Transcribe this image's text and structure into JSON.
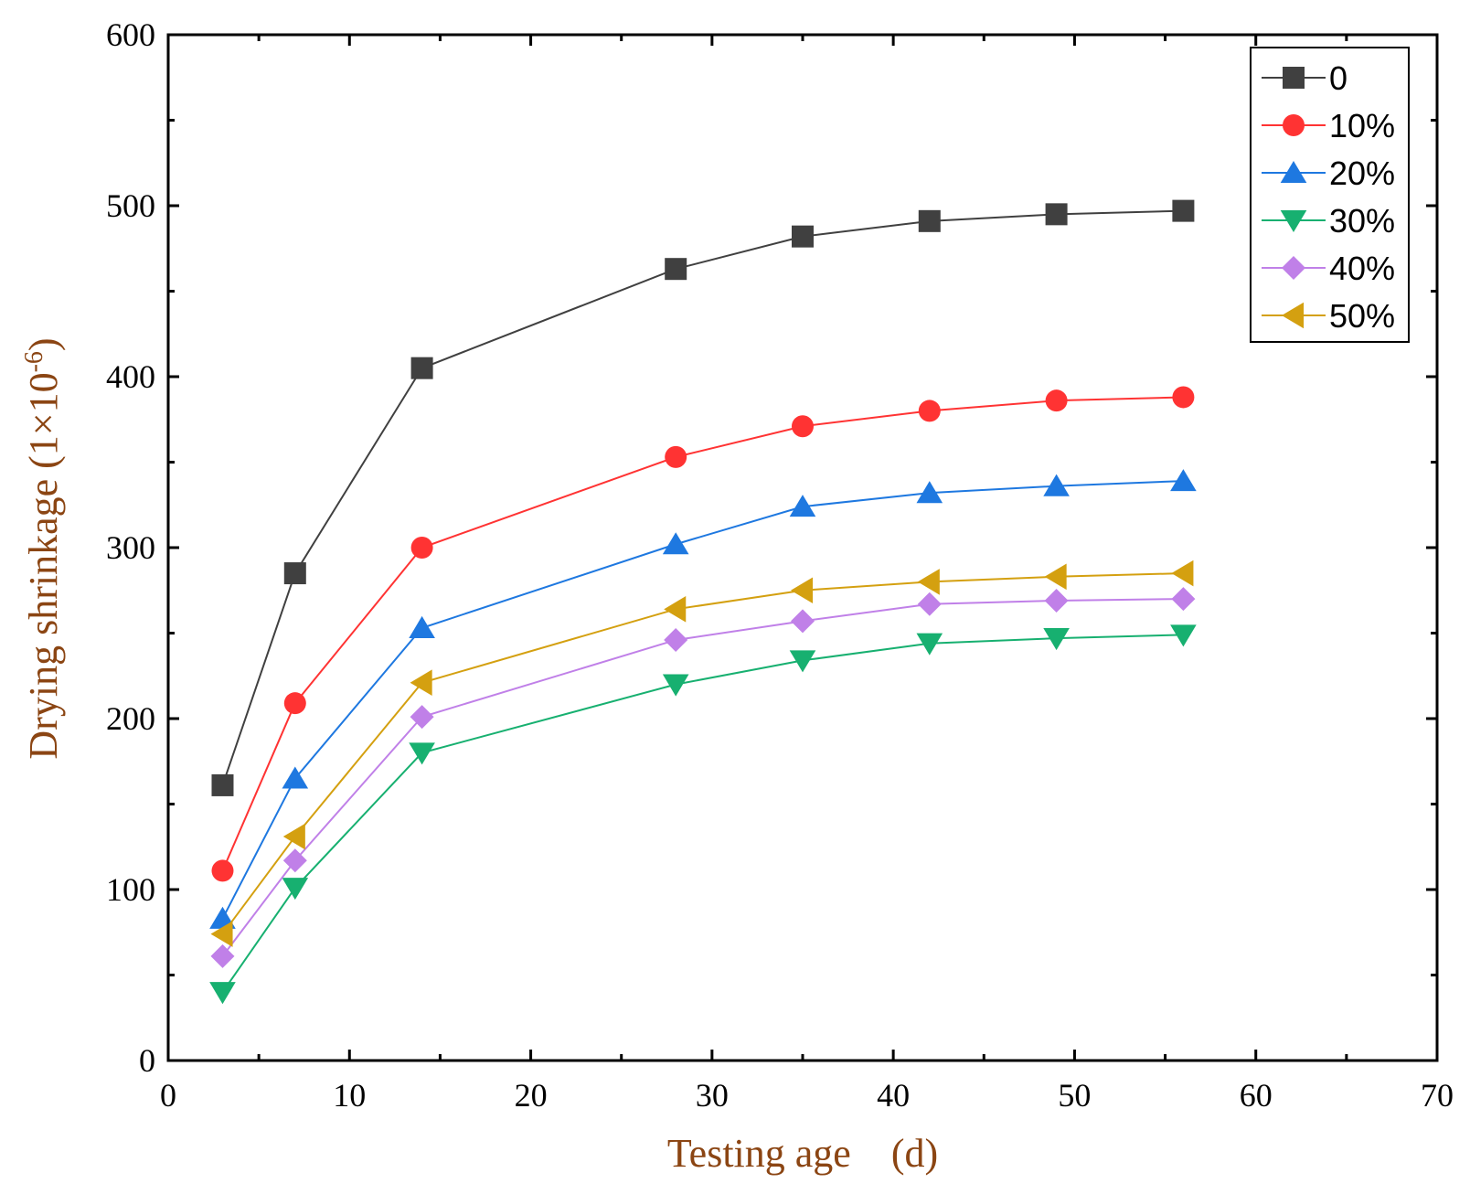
{
  "chart_data": {
    "type": "line",
    "title": "",
    "xlabel": "Testing age　(d)",
    "ylabel": "Drying shrinkage (1×10",
    "ylabel_exponent": "-6",
    "ylabel_close": ")",
    "xlim": [
      0,
      70
    ],
    "ylim": [
      0,
      600
    ],
    "xticks": [
      0,
      10,
      20,
      30,
      40,
      50,
      60,
      70
    ],
    "yticks": [
      0,
      100,
      200,
      300,
      400,
      500,
      600
    ],
    "xtick_labels": [
      "0",
      "10",
      "20",
      "30",
      "40",
      "50",
      "60",
      "70"
    ],
    "ytick_labels": [
      "0",
      "100",
      "200",
      "300",
      "400",
      "500",
      "600"
    ],
    "grid": false,
    "legend_position": "top-right",
    "x": [
      3,
      7,
      14,
      28,
      35,
      42,
      49,
      56
    ],
    "series": [
      {
        "name": "0",
        "color": "#404040",
        "marker": "square",
        "values": [
          161,
          285,
          405,
          463,
          482,
          491,
          495,
          497
        ]
      },
      {
        "name": "10%",
        "color": "#ff3333",
        "marker": "circle",
        "values": [
          111,
          209,
          300,
          353,
          371,
          380,
          386,
          388
        ]
      },
      {
        "name": "20%",
        "color": "#1e78e0",
        "marker": "triangle-up",
        "values": [
          83,
          165,
          253,
          302,
          324,
          332,
          336,
          339
        ]
      },
      {
        "name": "30%",
        "color": "#17b070",
        "marker": "triangle-down",
        "values": [
          40,
          101,
          180,
          220,
          234,
          244,
          247,
          249
        ]
      },
      {
        "name": "40%",
        "color": "#c080e8",
        "marker": "diamond",
        "values": [
          61,
          117,
          201,
          246,
          257,
          267,
          269,
          270
        ]
      },
      {
        "name": "50%",
        "color": "#d4a010",
        "marker": "triangle-left",
        "values": [
          74,
          131,
          221,
          264,
          275,
          280,
          283,
          285
        ]
      }
    ],
    "axis_title_color": "#8b4513"
  }
}
